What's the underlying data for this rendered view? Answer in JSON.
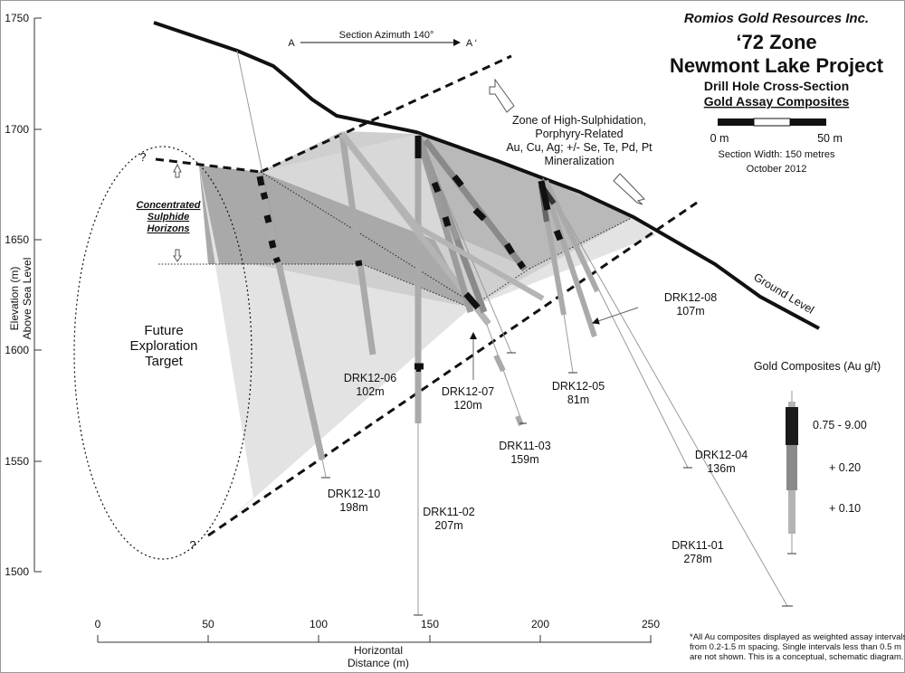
{
  "header": {
    "company": "Romios Gold Resources Inc.",
    "zone": "‘72 Zone",
    "project": "Newmont Lake Project",
    "subtitle": "Drill Hole Cross-Section",
    "subtitle2": "Gold Assay Composites",
    "scale_left": "0 m",
    "scale_right": "50 m",
    "section_width": "Section Width: 150 metres",
    "date": "October  2012"
  },
  "azimuth": {
    "start": "A",
    "label": "Section Azimuth 140°",
    "end": "A ‘"
  },
  "axes": {
    "ylabel_line1": "Elevation (m)",
    "ylabel_line2": "Above Sea Level",
    "xlabel_line1": "Horizontal",
    "xlabel_line2": "Distance (m)",
    "yticks": [
      "1750",
      "1700",
      "1650",
      "1600",
      "1550",
      "1500"
    ],
    "xticks": [
      "0",
      "50",
      "100",
      "150",
      "200",
      "250"
    ]
  },
  "annotations": {
    "zone_line1": "Zone of High-Sulphidation,",
    "zone_line2": "Porphyry-Related",
    "zone_line3": "Au, Cu, Ag; +/- Se, Te, Pd, Pt",
    "zone_line4": "Mineralization",
    "concentrated1": "Concentrated",
    "concentrated2": "Sulphide",
    "concentrated3": "Horizons",
    "future1": "Future",
    "future2": "Exploration",
    "future3": "Target",
    "ground": "Ground Level",
    "q1": "?",
    "q2": "?"
  },
  "holes": [
    {
      "name": "DRK12-06",
      "depth": "102m"
    },
    {
      "name": "DRK12-07",
      "depth": "120m"
    },
    {
      "name": "DRK11-03",
      "depth": "159m"
    },
    {
      "name": "DRK12-05",
      "depth": "81m"
    },
    {
      "name": "DRK12-08",
      "depth": "107m"
    },
    {
      "name": "DRK12-04",
      "depth": "136m"
    },
    {
      "name": "DRK12-10",
      "depth": "198m"
    },
    {
      "name": "DRK11-02",
      "depth": "207m"
    },
    {
      "name": "DRK11-01",
      "depth": "278m"
    }
  ],
  "legend": {
    "title": "Gold Composites (Au g/t)",
    "high": "0.75 - 9.00",
    "mid": "+ 0.20",
    "low": "+ 0.10",
    "colors": {
      "high": "#1a1a1a",
      "mid": "#8a8a8a",
      "low": "#b4b4b4"
    }
  },
  "footnote": {
    "line1": "*All Au composites displayed as weighted assay intervals",
    "line2": "from 0.2-1.5 m spacing.  Single intervals less than 0.5 m",
    "line3": "are not shown.  This is a conceptual, schematic diagram."
  }
}
